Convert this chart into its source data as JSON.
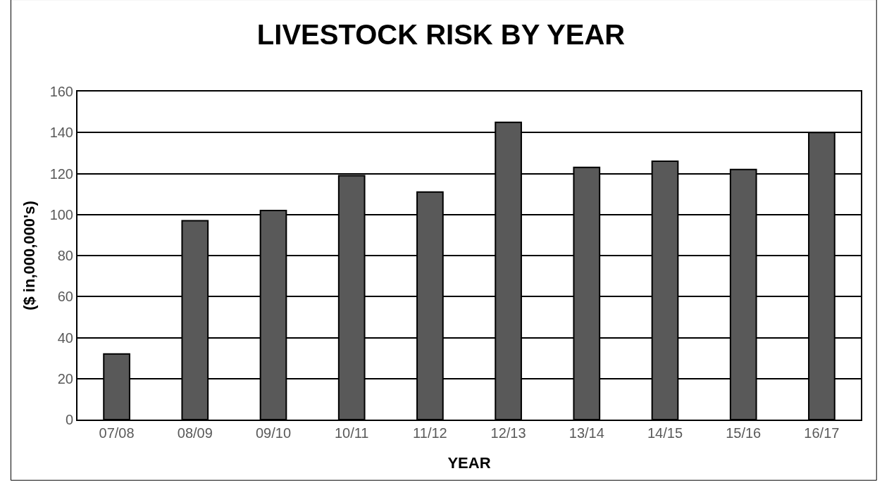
{
  "chart_data": {
    "type": "bar",
    "title": "LIVESTOCK RISK BY YEAR",
    "xlabel": "YEAR",
    "ylabel": "($ in,000,000's)",
    "categories": [
      "07/08",
      "08/09",
      "09/10",
      "10/11",
      "11/12",
      "12/13",
      "13/14",
      "14/15",
      "15/16",
      "16/17"
    ],
    "values": [
      32,
      97,
      102,
      119,
      111,
      145,
      123,
      126,
      122,
      140
    ],
    "color": "#595959",
    "ylim": [
      0,
      160
    ],
    "yticks": [
      0,
      20,
      40,
      60,
      80,
      100,
      120,
      140,
      160
    ],
    "grid": "y"
  }
}
